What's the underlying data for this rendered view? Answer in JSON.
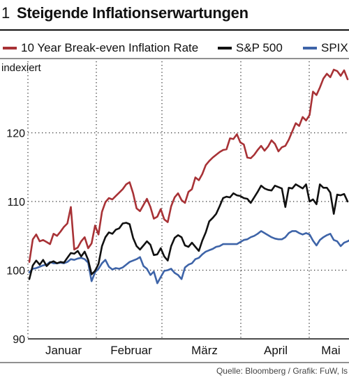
{
  "figure": {
    "number": "1",
    "title": "Steigende Inflationserwartungen",
    "source": "Quelle: Bloomberg / Grafik: FuW, ls"
  },
  "chart_data": {
    "type": "line",
    "ylabel": "indexiert",
    "ylim": [
      90,
      130
    ],
    "yticks": [
      90,
      100,
      110,
      120
    ],
    "x_tick_labels": [
      "Januar",
      "Februar",
      "März",
      "April",
      "Mai"
    ],
    "grid": "dotted vertical (month boundaries) and horizontal (y ticks)",
    "legend_position": "top",
    "series": [
      {
        "name": "10 Year Break-even Inflation Rate",
        "color": "#a83236",
        "values": [
          101.2,
          104.5,
          105.2,
          104.2,
          104.4,
          104.1,
          103.8,
          105.3,
          105.0,
          105.6,
          106.3,
          106.8,
          109.2,
          103.0,
          103.3,
          104.2,
          104.8,
          103.2,
          103.9,
          106.5,
          105.2,
          108.5,
          109.9,
          110.5,
          110.3,
          110.8,
          111.3,
          111.8,
          112.5,
          112.8,
          111.2,
          109.0,
          108.6,
          109.5,
          110.4,
          109.2,
          107.5,
          107.8,
          108.9,
          107.4,
          107.0,
          109.3,
          110.6,
          111.2,
          110.2,
          109.8,
          111.4,
          111.8,
          113.5,
          113.1,
          114.0,
          115.3,
          115.9,
          116.4,
          116.8,
          117.2,
          117.5,
          117.6,
          119.2,
          119.1,
          119.8,
          118.6,
          118.3,
          116.4,
          116.3,
          116.8,
          117.5,
          118.1,
          117.4,
          118.0,
          118.9,
          118.4,
          117.3,
          117.9,
          118.1,
          119.0,
          120.2,
          121.4,
          121.0,
          122.3,
          121.8,
          122.6,
          126.0,
          125.5,
          126.6,
          127.9,
          128.6,
          128.1,
          129.2,
          129.0,
          128.3,
          129.1,
          127.8
        ]
      },
      {
        "name": "S&P 500",
        "color": "#111111",
        "values": [
          98.7,
          100.7,
          101.4,
          100.8,
          101.5,
          100.6,
          101.1,
          101.3,
          101.0,
          101.2,
          101.1,
          101.8,
          102.5,
          102.4,
          102.8,
          102.0,
          102.7,
          101.5,
          99.4,
          99.9,
          100.9,
          103.5,
          104.8,
          105.5,
          105.3,
          105.9,
          106.1,
          106.8,
          106.9,
          106.7,
          104.7,
          103.5,
          103.0,
          103.6,
          104.2,
          103.7,
          102.2,
          102.3,
          103.2,
          102.0,
          101.4,
          103.5,
          104.7,
          105.1,
          104.8,
          103.6,
          103.4,
          104.0,
          103.4,
          102.8,
          104.3,
          105.5,
          107.1,
          107.6,
          108.2,
          109.3,
          110.5,
          110.7,
          110.6,
          111.2,
          110.9,
          110.8,
          110.5,
          110.4,
          109.8,
          110.6,
          111.4,
          112.3,
          111.9,
          111.7,
          111.6,
          112.3,
          112.1,
          111.9,
          109.2,
          112.0,
          111.9,
          112.5,
          112.2,
          111.9,
          112.5,
          110.0,
          110.3,
          109.6,
          112.5,
          112.0,
          112.0,
          111.3,
          108.2,
          111.0,
          110.9,
          111.1,
          110.0
        ]
      },
      {
        "name": "SPIX",
        "color": "#3e64a8",
        "values": [
          99.7,
          100.2,
          100.3,
          100.5,
          100.7,
          100.8,
          101.2,
          101.0,
          101.0,
          101.1,
          101.0,
          101.2,
          101.6,
          101.5,
          101.7,
          101.8,
          101.6,
          101.1,
          98.4,
          99.7,
          100.2,
          101.0,
          101.5,
          100.5,
          100.1,
          100.3,
          100.2,
          100.4,
          100.8,
          101.2,
          101.4,
          101.6,
          101.9,
          100.6,
          100.2,
          99.3,
          99.8,
          98.1,
          99.0,
          99.9,
          100.0,
          100.2,
          99.6,
          99.3,
          98.7,
          100.4,
          100.8,
          101.0,
          101.6,
          101.8,
          102.3,
          102.7,
          102.9,
          103.1,
          103.4,
          103.5,
          103.8,
          103.8,
          103.8,
          103.8,
          103.8,
          104.1,
          104.4,
          104.5,
          104.8,
          105.0,
          105.3,
          105.7,
          105.4,
          105.1,
          104.8,
          104.6,
          104.5,
          104.5,
          104.8,
          105.4,
          105.7,
          105.7,
          105.4,
          105.2,
          105.4,
          105.2,
          104.3,
          103.6,
          104.4,
          104.8,
          105.1,
          105.3,
          104.4,
          104.2,
          103.5,
          104.0,
          104.2,
          104.5,
          103.6
        ]
      }
    ]
  }
}
